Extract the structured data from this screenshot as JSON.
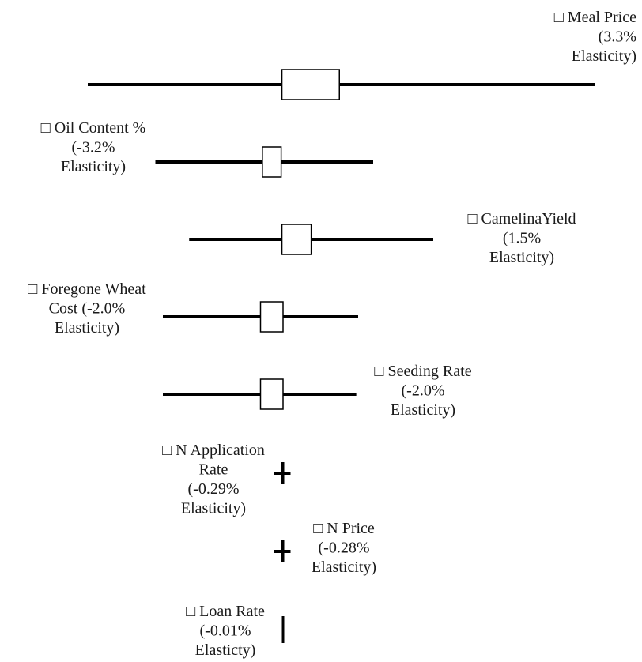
{
  "chart_data": {
    "type": "tornado",
    "title": "",
    "xlabel": "",
    "ylabel": "",
    "grid": false,
    "legend": "none",
    "series": [
      {
        "label_lines": [
          "Meal Price",
          "(3.3%",
          "Elasticity)"
        ],
        "low": -5.2,
        "high": 8.3,
        "box_low": -0.03,
        "box_high": 1.5
      },
      {
        "label_lines": [
          "Oil Content %",
          "(-3.2%",
          "Elasticity)"
        ],
        "low": -3.4,
        "high": 2.4,
        "box_low": -0.55,
        "box_high": -0.05
      },
      {
        "label_lines": [
          "CamelinaYield",
          "(1.5%",
          "Elasticity)"
        ],
        "low": -2.5,
        "high": 4.0,
        "box_low": -0.03,
        "box_high": 0.75
      },
      {
        "label_lines": [
          "Foregone Wheat",
          "Cost (-2.0%",
          "Elasticity)"
        ],
        "low": -3.2,
        "high": 2.0,
        "box_low": -0.6,
        "box_high": 0.0
      },
      {
        "label_lines": [
          "Seeding Rate",
          "(-2.0%",
          "Elasticity)"
        ],
        "low": -3.2,
        "high": 1.95,
        "box_low": -0.6,
        "box_high": 0.0
      },
      {
        "label_lines": [
          "N Application",
          "Rate",
          "(-0.29%",
          "Elasticity)"
        ],
        "low": -0.25,
        "high": 0.2,
        "box_low": -0.05,
        "box_high": 0.05
      },
      {
        "label_lines": [
          "N Price",
          "(-0.28%",
          "Elasticity)"
        ],
        "low": -0.25,
        "high": 0.2,
        "box_low": -0.05,
        "box_high": 0.05
      },
      {
        "label_lines": [
          "Loan Rate",
          "(-0.01%",
          "Elasticty)"
        ],
        "low": 0.0,
        "high": 0.0,
        "box_low": 0.0,
        "box_high": 0.0
      }
    ],
    "marker_glyph": "□"
  }
}
